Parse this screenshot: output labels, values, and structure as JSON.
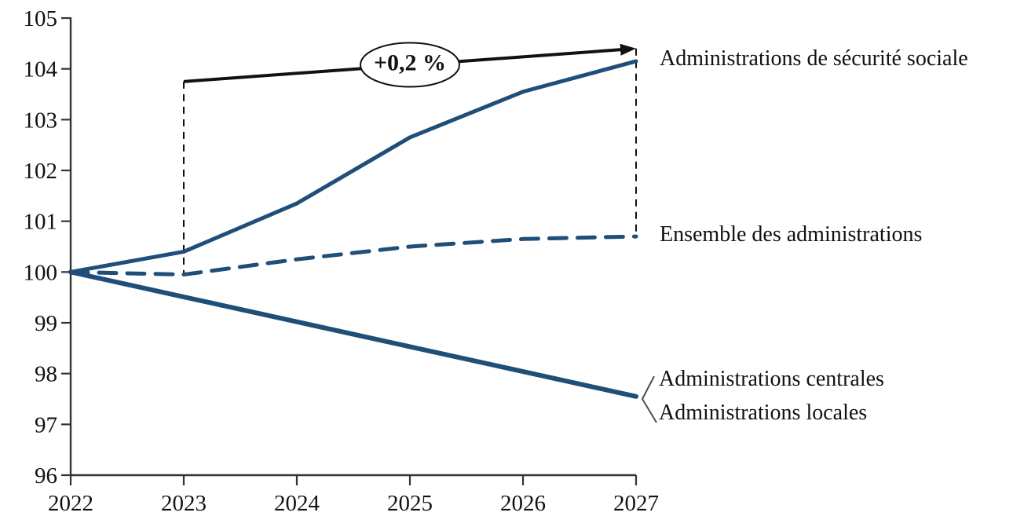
{
  "chart_data": {
    "type": "line",
    "title": "",
    "xlabel": "",
    "ylabel": "",
    "x": [
      2022,
      2023,
      2024,
      2025,
      2026,
      2027
    ],
    "x_labels": [
      "2022",
      "2023",
      "2024",
      "2025",
      "2026",
      "2027"
    ],
    "xlim": [
      2022,
      2027
    ],
    "ylim": [
      96,
      105
    ],
    "y_ticks": [
      96,
      97,
      98,
      99,
      100,
      101,
      102,
      103,
      104,
      105
    ],
    "y_tick_labels": [
      "96",
      "97",
      "98",
      "99",
      "100",
      "101",
      "102",
      "103",
      "104",
      "105"
    ],
    "grid": false,
    "legend_position": "labels-right-of-lines",
    "line_color": "#1f4e79",
    "axis_color": "#333333",
    "annotation_color": "#111111",
    "series": [
      {
        "name": "Administrations de sécurité sociale",
        "style": "solid",
        "color": "#1f4e79",
        "width": 5,
        "values": [
          100,
          100.4,
          101.35,
          102.65,
          103.55,
          104.15
        ]
      },
      {
        "name": "Ensemble des administrations",
        "style": "dashed",
        "color": "#1f4e79",
        "width": 5,
        "values": [
          100,
          99.95,
          100.25,
          100.5,
          100.65,
          100.7
        ]
      },
      {
        "name": "Administrations centrales",
        "style": "solid",
        "color": "#1f4e79",
        "width": 6,
        "values": [
          100,
          99.51,
          99.02,
          98.53,
          98.04,
          97.55
        ]
      },
      {
        "name": "Administrations locales",
        "style": "solid",
        "color": "#1f4e79",
        "width": 5,
        "values": [
          100,
          99.51,
          99.02,
          98.53,
          98.04,
          97.55
        ]
      }
    ],
    "annotations": {
      "growth_arrow": {
        "label": "+0,2 %",
        "from_x": 2023,
        "from_y": 103.75,
        "to_x": 2027,
        "to_y": 104.4
      },
      "ellipse_center": {
        "x": 2025,
        "y": 104.08
      },
      "dashed_vlines": [
        {
          "x": 2023,
          "y_top": 103.75,
          "y_bottom": 99.95
        },
        {
          "x": 2027,
          "y_top": 104.4,
          "y_bottom": 100.7
        }
      ]
    }
  }
}
